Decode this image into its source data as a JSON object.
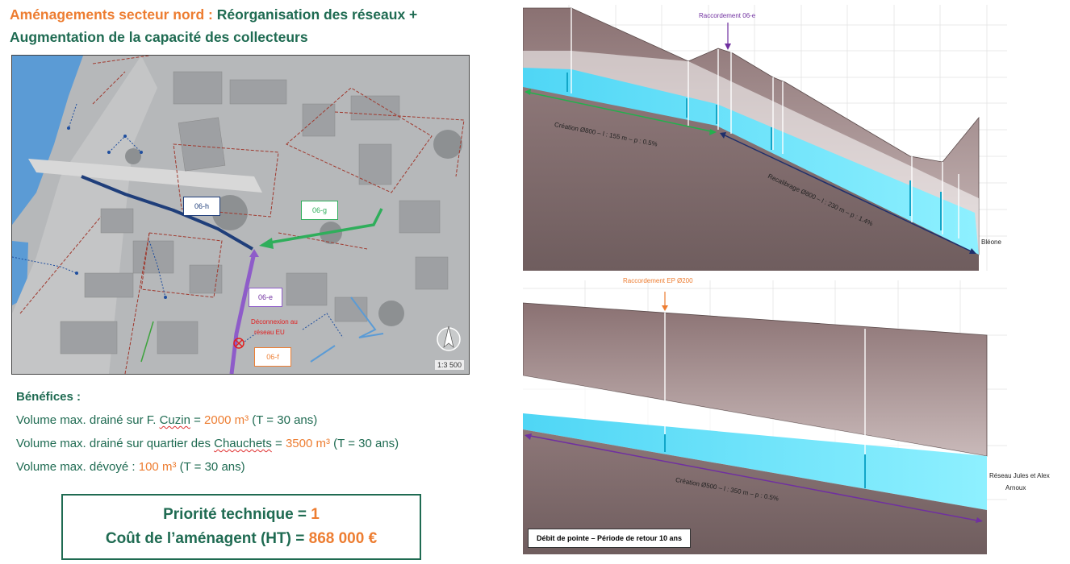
{
  "header": {
    "title_orange": "Aménagements secteur nord :",
    "title_green_1": "Réorganisation des réseaux +",
    "title_green_2": "Augmentation de la capacité des collecteurs"
  },
  "map": {
    "labels": {
      "h": "06-h",
      "g": "06-g",
      "e": "06-e",
      "f": "06-f",
      "deconnexion_1": "Déconnexion au",
      "deconnexion_2": "réseau EU"
    },
    "scale": "1:3 500",
    "icons": [
      "compass-icon",
      "disconnect-icon"
    ]
  },
  "benefits": {
    "heading": "Bénéfices :",
    "line1": {
      "pre": "Volume max. drainé sur F. ",
      "u": "Cuzin",
      "mid": " = ",
      "val": "2000 m³",
      "post": " (T = 30 ans)"
    },
    "line2": {
      "pre": "Volume max. drainé sur quartier des ",
      "u": "Chauchets",
      "mid": " = ",
      "val": "3500 m³",
      "post": " (T = 30 ans)"
    },
    "line3": {
      "pre": "Volume max. dévoyé : ",
      "val": "100 m³",
      "post": " (T = 30 ans)"
    }
  },
  "summary": {
    "priority_label": "Priorité technique = ",
    "priority_value": "1",
    "cost_label": "Coût de l’aménagent (HT) = ",
    "cost_value": "868 000 €"
  },
  "profile_top": {
    "raccordement": "Raccordement 06-e",
    "creation": "Création Ø800 – l : 155 m – p : 0.5%",
    "recalibrage": "Recalibrage Ø800 – l : 230 m – p : 1.4%",
    "outlet": "Bléone"
  },
  "profile_bottom": {
    "raccordement": "Raccordement EP Ø200",
    "creation": "Création Ø500 – l : 350 m – p : 0.5%",
    "outlet_1": "Réseau Jules et Alex",
    "outlet_2": "Arnoux",
    "legend": "Débit de pointe – Période de retour 10 ans"
  },
  "colors": {
    "green": "#1f6b52",
    "orange": "#ed7d31",
    "purple": "#7030a0",
    "water": "#5fe3ff",
    "ground": "#8a7576"
  }
}
